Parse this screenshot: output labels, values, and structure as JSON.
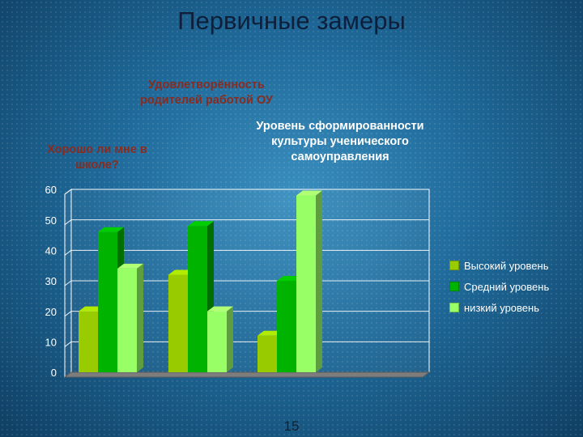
{
  "slide": {
    "title": "Первичные замеры",
    "page_number": "15"
  },
  "annotations": {
    "a1": "Хорошо ли мне в школе?",
    "a2": "Удовлетворённость родителей работой ОУ",
    "a3": "Уровень сформированности культуры ученического самоуправления"
  },
  "colors": {
    "series_high": "#99cc00",
    "series_mid": "#00b300",
    "series_low": "#99ff66"
  },
  "chart_data": {
    "type": "bar",
    "categories": [
      "",
      "",
      ""
    ],
    "series": [
      {
        "name": "Высокий уровень",
        "values": [
          20,
          32,
          12
        ]
      },
      {
        "name": "Средний уровень",
        "values": [
          46,
          48,
          30
        ]
      },
      {
        "name": "низкий уровень",
        "values": [
          34,
          20,
          58
        ]
      }
    ],
    "ylim": [
      0,
      60
    ],
    "yticks": [
      0,
      10,
      20,
      30,
      40,
      50,
      60
    ],
    "grid": true,
    "legend": "right",
    "three_d": true
  }
}
